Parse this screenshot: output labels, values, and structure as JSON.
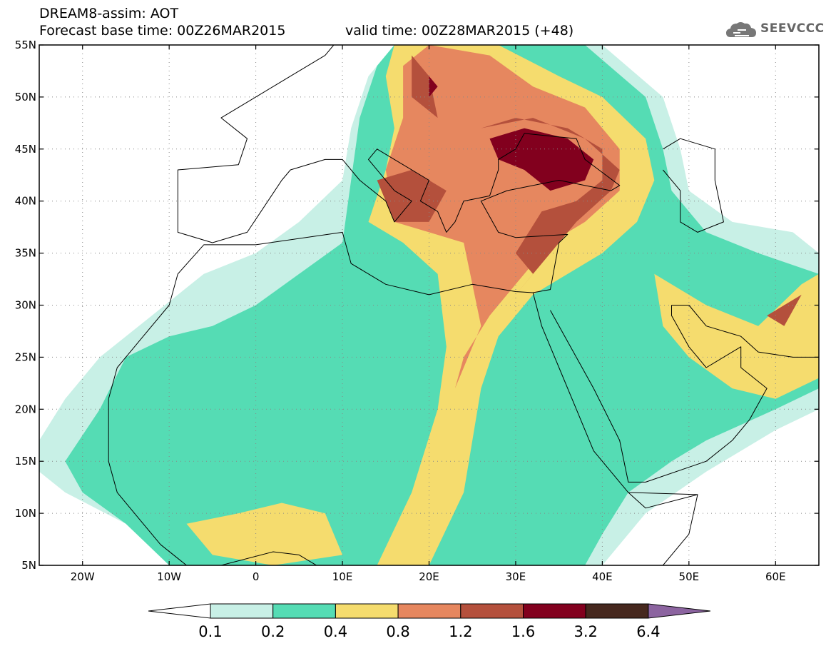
{
  "header": {
    "title_line1": "DREAM8-assim: AOT",
    "title_line2": "Forecast base time: 00Z26MAR2015",
    "valid_time": "valid time: 00Z28MAR2015 (+48)",
    "logo_text": "SEEVCCC"
  },
  "map": {
    "lon_range": [
      -25,
      65
    ],
    "lat_range": [
      5,
      55
    ],
    "lat_ticks": [
      {
        "value": 5,
        "label": "5N"
      },
      {
        "value": 10,
        "label": "10N"
      },
      {
        "value": 15,
        "label": "15N"
      },
      {
        "value": 20,
        "label": "20N"
      },
      {
        "value": 25,
        "label": "25N"
      },
      {
        "value": 30,
        "label": "30N"
      },
      {
        "value": 35,
        "label": "35N"
      },
      {
        "value": 40,
        "label": "40N"
      },
      {
        "value": 45,
        "label": "45N"
      },
      {
        "value": 50,
        "label": "50N"
      },
      {
        "value": 55,
        "label": "55N"
      }
    ],
    "lon_ticks": [
      {
        "value": -20,
        "label": "20W"
      },
      {
        "value": -10,
        "label": "10W"
      },
      {
        "value": 0,
        "label": "0"
      },
      {
        "value": 10,
        "label": "10E"
      },
      {
        "value": 20,
        "label": "20E"
      },
      {
        "value": 30,
        "label": "30E"
      },
      {
        "value": 40,
        "label": "40E"
      },
      {
        "value": 50,
        "label": "50E"
      },
      {
        "value": 60,
        "label": "60E"
      }
    ],
    "grid": true
  },
  "colorbar": {
    "colors": [
      "#ffffff",
      "#c8f0e6",
      "#55dcb4",
      "#f5dc6e",
      "#e6875f",
      "#b4503c",
      "#82001e",
      "#46281e",
      "#8c64a0"
    ],
    "labels": [
      "0.1",
      "0.2",
      "0.4",
      "0.8",
      "1.2",
      "1.6",
      "3.2",
      "6.4"
    ]
  },
  "aot_regions": [
    {
      "level": 1,
      "points": [
        [
          -25,
          17
        ],
        [
          -22,
          21
        ],
        [
          -18,
          25
        ],
        [
          -12,
          29
        ],
        [
          -6,
          33
        ],
        [
          0,
          35
        ],
        [
          5,
          38
        ],
        [
          10,
          42
        ],
        [
          11,
          47
        ],
        [
          13,
          52
        ],
        [
          16,
          55
        ],
        [
          40,
          55
        ],
        [
          47,
          50
        ],
        [
          49,
          45
        ],
        [
          50,
          41
        ],
        [
          55,
          38
        ],
        [
          62,
          37
        ],
        [
          65,
          35
        ],
        [
          65,
          20
        ],
        [
          60,
          18
        ],
        [
          52,
          14
        ],
        [
          45,
          10
        ],
        [
          40,
          5
        ],
        [
          -8,
          5
        ],
        [
          -15,
          9
        ],
        [
          -22,
          12
        ],
        [
          -25,
          14
        ]
      ]
    },
    {
      "level": 2,
      "points": [
        [
          -22,
          15
        ],
        [
          -18,
          20
        ],
        [
          -15,
          25
        ],
        [
          -10,
          27
        ],
        [
          -5,
          28
        ],
        [
          0,
          30
        ],
        [
          5,
          33
        ],
        [
          10,
          36
        ],
        [
          11,
          42
        ],
        [
          12,
          48
        ],
        [
          14,
          53
        ],
        [
          16,
          55
        ],
        [
          38,
          55
        ],
        [
          45,
          50
        ],
        [
          47,
          45
        ],
        [
          48,
          41
        ],
        [
          52,
          37
        ],
        [
          58,
          35
        ],
        [
          65,
          33
        ],
        [
          65,
          22
        ],
        [
          60,
          20
        ],
        [
          52,
          17
        ],
        [
          48,
          15
        ],
        [
          43,
          12
        ],
        [
          40,
          8
        ],
        [
          38,
          5
        ],
        [
          -10,
          5
        ],
        [
          -15,
          9
        ],
        [
          -20,
          12
        ]
      ]
    },
    {
      "level": 3,
      "points": [
        [
          15,
          52
        ],
        [
          16,
          47
        ],
        [
          15,
          43
        ],
        [
          13,
          38
        ],
        [
          17,
          36
        ],
        [
          21,
          33
        ],
        [
          22,
          26
        ],
        [
          21,
          20
        ],
        [
          18,
          12
        ],
        [
          14,
          5
        ],
        [
          20,
          5
        ],
        [
          24,
          12
        ],
        [
          26,
          22
        ],
        [
          28,
          27
        ],
        [
          32,
          31
        ],
        [
          36,
          33
        ],
        [
          40,
          35
        ],
        [
          44,
          38
        ],
        [
          46,
          42
        ],
        [
          45,
          46
        ],
        [
          40,
          50
        ],
        [
          35,
          52
        ],
        [
          28,
          55
        ],
        [
          16,
          55
        ]
      ]
    },
    {
      "level": 3,
      "points": [
        [
          46,
          33
        ],
        [
          52,
          30
        ],
        [
          58,
          28
        ],
        [
          63,
          32
        ],
        [
          65,
          33
        ],
        [
          65,
          23
        ],
        [
          60,
          21
        ],
        [
          55,
          22
        ],
        [
          50,
          25
        ],
        [
          47,
          28
        ]
      ]
    },
    {
      "level": 3,
      "points": [
        [
          -8,
          9
        ],
        [
          -2,
          10
        ],
        [
          3,
          11
        ],
        [
          8,
          10
        ],
        [
          10,
          6
        ],
        [
          2,
          5
        ],
        [
          -5,
          6
        ]
      ]
    },
    {
      "level": 4,
      "points": [
        [
          17,
          53
        ],
        [
          17,
          48
        ],
        [
          15,
          43
        ],
        [
          16,
          38
        ],
        [
          20,
          37
        ],
        [
          24,
          36
        ],
        [
          26,
          28
        ],
        [
          23,
          22
        ],
        [
          24,
          25
        ],
        [
          27,
          29
        ],
        [
          30,
          32
        ],
        [
          34,
          36
        ],
        [
          38,
          38
        ],
        [
          42,
          41
        ],
        [
          42,
          45
        ],
        [
          38,
          49
        ],
        [
          32,
          51
        ],
        [
          27,
          54
        ],
        [
          20,
          55
        ]
      ]
    },
    {
      "level": 5,
      "points": [
        [
          18,
          54
        ],
        [
          18,
          50
        ],
        [
          21,
          48
        ],
        [
          20,
          52
        ]
      ]
    },
    {
      "level": 5,
      "points": [
        [
          14,
          42
        ],
        [
          16,
          38
        ],
        [
          20,
          38
        ],
        [
          22,
          41
        ],
        [
          18,
          43
        ]
      ]
    },
    {
      "level": 5,
      "points": [
        [
          26,
          47
        ],
        [
          30,
          48
        ],
        [
          36,
          47
        ],
        [
          40,
          45
        ],
        [
          40,
          42
        ],
        [
          37,
          40
        ],
        [
          33,
          39
        ],
        [
          30,
          35
        ],
        [
          32,
          33
        ],
        [
          29,
          30
        ],
        [
          33,
          34
        ],
        [
          37,
          38
        ],
        [
          41,
          41
        ],
        [
          42,
          43
        ],
        [
          38,
          46
        ],
        [
          32,
          48
        ]
      ]
    },
    {
      "level": 6,
      "points": [
        [
          27,
          46
        ],
        [
          31,
          47
        ],
        [
          36,
          46
        ],
        [
          39,
          44
        ],
        [
          38,
          42
        ],
        [
          34,
          41
        ],
        [
          31,
          43
        ],
        [
          28,
          44
        ]
      ]
    },
    {
      "level": 6,
      "points": [
        [
          20,
          52
        ],
        [
          21,
          51
        ],
        [
          20,
          50
        ]
      ]
    },
    {
      "level": 5,
      "points": [
        [
          59,
          29
        ],
        [
          61,
          28
        ],
        [
          63,
          31
        ],
        [
          61,
          30
        ]
      ]
    }
  ],
  "coastlines": [
    {
      "name": "africa-coast",
      "points": [
        [
          -17,
          21
        ],
        [
          -16,
          24
        ],
        [
          -13,
          27
        ],
        [
          -10,
          30
        ],
        [
          -9,
          33
        ],
        [
          -6,
          35.8
        ],
        [
          0,
          35.8
        ],
        [
          10,
          37
        ],
        [
          11,
          34
        ],
        [
          15,
          32
        ],
        [
          20,
          31
        ],
        [
          25,
          32
        ],
        [
          30,
          31.3
        ],
        [
          32,
          31.2
        ],
        [
          34,
          31.5
        ],
        [
          35,
          36
        ],
        [
          36,
          36.8
        ],
        [
          30,
          36.5
        ],
        [
          28,
          37
        ],
        [
          26,
          40
        ],
        [
          29,
          41
        ],
        [
          35,
          42
        ],
        [
          41,
          41
        ],
        [
          42,
          41.5
        ],
        [
          38,
          44
        ],
        [
          37,
          46
        ],
        [
          31,
          46.5
        ],
        [
          30,
          45
        ],
        [
          28,
          44
        ],
        [
          28,
          43
        ],
        [
          27,
          40.5
        ],
        [
          24,
          40
        ],
        [
          23,
          38
        ],
        [
          22,
          37
        ],
        [
          21,
          39
        ],
        [
          19,
          40
        ],
        [
          20,
          42
        ],
        [
          16,
          44
        ],
        [
          14,
          45
        ],
        [
          13,
          44
        ],
        [
          16,
          41
        ],
        [
          18,
          40
        ],
        [
          16,
          38
        ],
        [
          15,
          40
        ],
        [
          12,
          42
        ],
        [
          10,
          44
        ],
        [
          8,
          44
        ],
        [
          4,
          43
        ],
        [
          3,
          42
        ],
        [
          -1,
          37
        ],
        [
          -5,
          36
        ],
        [
          -9,
          37
        ],
        [
          -9,
          39
        ],
        [
          -9,
          43
        ],
        [
          -2,
          43.5
        ],
        [
          -1,
          46
        ],
        [
          -4,
          48
        ],
        [
          -1,
          49.5
        ],
        [
          2,
          51
        ],
        [
          4,
          52
        ],
        [
          8,
          54
        ],
        [
          9,
          55
        ]
      ]
    },
    {
      "name": "west-africa-coast",
      "points": [
        [
          -17,
          21
        ],
        [
          -17,
          15
        ],
        [
          -16,
          12
        ],
        [
          -13,
          9
        ],
        [
          -11,
          7
        ],
        [
          -8,
          5
        ],
        [
          -4,
          5
        ],
        [
          2,
          6.3
        ],
        [
          5,
          6
        ],
        [
          8,
          4.5
        ],
        [
          9,
          4
        ]
      ]
    },
    {
      "name": "red-sea-east",
      "points": [
        [
          32,
          31.2
        ],
        [
          33,
          28
        ],
        [
          35,
          24
        ],
        [
          37,
          20
        ],
        [
          39,
          16
        ],
        [
          42,
          13
        ],
        [
          43,
          12
        ],
        [
          51,
          11.8
        ]
      ]
    },
    {
      "name": "red-sea-west",
      "points": [
        [
          34,
          29.5
        ],
        [
          35,
          28
        ],
        [
          39,
          22
        ],
        [
          42,
          17
        ],
        [
          43,
          13
        ],
        [
          45,
          13
        ],
        [
          52,
          15
        ],
        [
          55,
          17
        ],
        [
          57,
          19
        ],
        [
          59,
          22
        ],
        [
          56,
          24
        ],
        [
          56,
          26
        ],
        [
          52,
          24
        ],
        [
          50,
          26
        ],
        [
          48,
          29
        ],
        [
          48,
          30
        ]
      ]
    },
    {
      "name": "horn",
      "points": [
        [
          43,
          12
        ],
        [
          45,
          10.5
        ],
        [
          51,
          11.8
        ],
        [
          50,
          8
        ],
        [
          47,
          5
        ]
      ]
    },
    {
      "name": "gulf-north",
      "points": [
        [
          48,
          30
        ],
        [
          50,
          30
        ],
        [
          52,
          28
        ],
        [
          56,
          27
        ],
        [
          58,
          25.5
        ],
        [
          62,
          25
        ],
        [
          65,
          25
        ]
      ]
    },
    {
      "name": "caspian",
      "points": [
        [
          47,
          45
        ],
        [
          49,
          46
        ],
        [
          53,
          45
        ],
        [
          53,
          42
        ],
        [
          54,
          38
        ],
        [
          51,
          37
        ],
        [
          49,
          38
        ],
        [
          49,
          41
        ],
        [
          47,
          43
        ]
      ]
    }
  ]
}
